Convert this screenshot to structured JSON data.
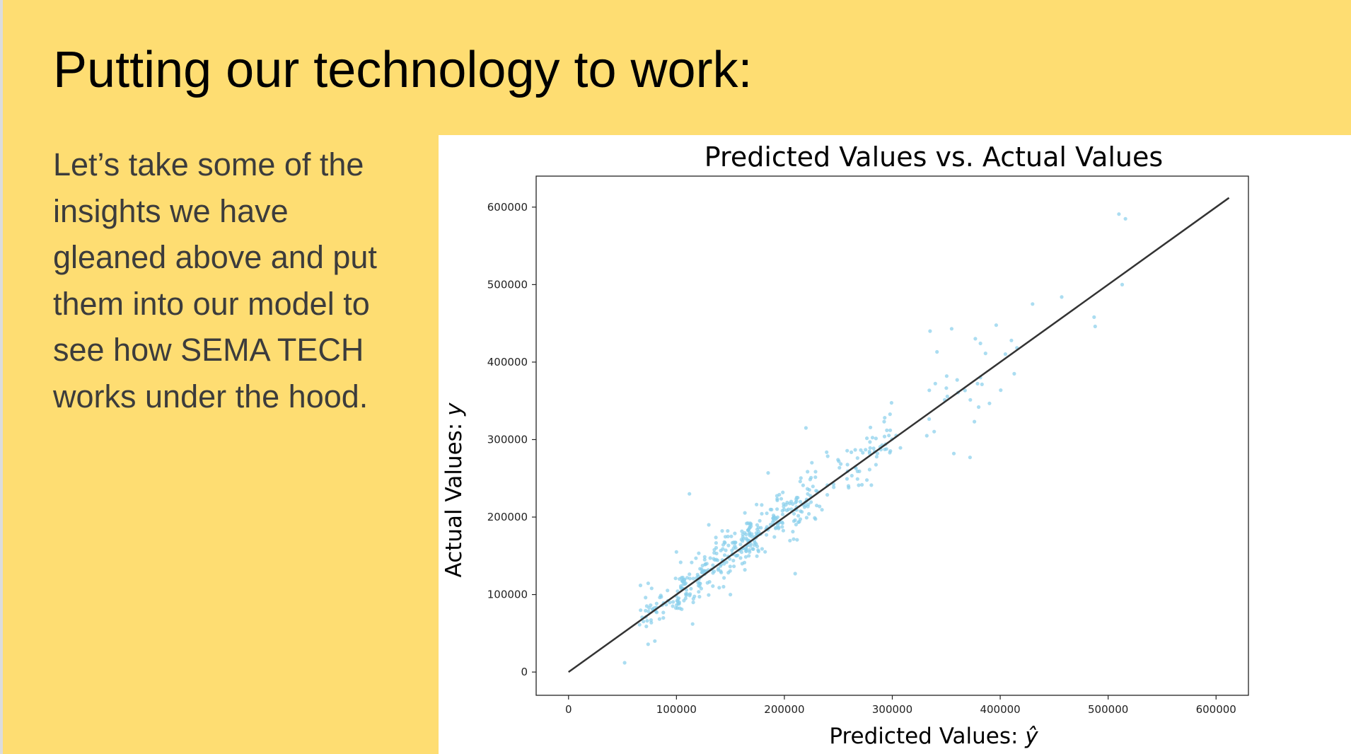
{
  "slide": {
    "title": "Putting our technology to work:",
    "body_lines": [
      "Let’s take some of the",
      "insights we have",
      "gleaned above and put",
      "them into our model to",
      "see how SEMA TECH",
      "works under the hood."
    ],
    "background_color": "#fedd72"
  },
  "chart_data": {
    "type": "scatter",
    "title": "Predicted Values vs. Actual Values",
    "xlabel": "Predicted Values: ",
    "xlabel_symbol": "ŷ",
    "ylabel": "Actual Values: ",
    "ylabel_symbol": "y",
    "xlim": [
      -30000,
      630000
    ],
    "ylim": [
      -30000,
      640000
    ],
    "x_ticks": [
      0,
      100000,
      200000,
      300000,
      400000,
      500000,
      600000
    ],
    "y_ticks": [
      0,
      100000,
      200000,
      300000,
      400000,
      500000,
      600000
    ],
    "x_tick_labels": [
      "0",
      "100000",
      "200000",
      "300000",
      "400000",
      "500000",
      "600000"
    ],
    "y_tick_labels": [
      "0",
      "100000",
      "200000",
      "300000",
      "400000",
      "500000",
      "600000"
    ],
    "grid": false,
    "point_color": "#87ceeb",
    "line_color": "#333333",
    "reference_line": {
      "x": [
        0,
        612000
      ],
      "y": [
        0,
        612000
      ]
    },
    "highlight_points": [
      {
        "x": 52000,
        "y": 12000
      },
      {
        "x": 80000,
        "y": 40000
      },
      {
        "x": 112000,
        "y": 230000
      },
      {
        "x": 115000,
        "y": 62000
      },
      {
        "x": 100000,
        "y": 155000
      },
      {
        "x": 185000,
        "y": 257000
      },
      {
        "x": 210000,
        "y": 127000
      },
      {
        "x": 220000,
        "y": 315000
      },
      {
        "x": 335000,
        "y": 440000
      },
      {
        "x": 355000,
        "y": 443000
      },
      {
        "x": 357000,
        "y": 282000
      },
      {
        "x": 372000,
        "y": 277000
      },
      {
        "x": 457000,
        "y": 484000
      },
      {
        "x": 487000,
        "y": 458000
      },
      {
        "x": 488000,
        "y": 446000
      },
      {
        "x": 513000,
        "y": 500000
      },
      {
        "x": 510000,
        "y": 591000
      },
      {
        "x": 516000,
        "y": 585000
      },
      {
        "x": 430000,
        "y": 475000
      },
      {
        "x": 413000,
        "y": 385000
      },
      {
        "x": 380000,
        "y": 342000
      },
      {
        "x": 332000,
        "y": 305000
      },
      {
        "x": 150000,
        "y": 100000
      },
      {
        "x": 130000,
        "y": 190000
      }
    ],
    "cluster_bands": [
      {
        "x_from": 65000,
        "x_to": 110000,
        "count": 55,
        "spread": 15000
      },
      {
        "x_from": 100000,
        "x_to": 170000,
        "count": 160,
        "spread": 16000
      },
      {
        "x_from": 160000,
        "x_to": 230000,
        "count": 150,
        "spread": 18000
      },
      {
        "x_from": 220000,
        "x_to": 300000,
        "count": 70,
        "spread": 22000
      },
      {
        "x_from": 290000,
        "x_to": 420000,
        "count": 32,
        "spread": 28000
      }
    ]
  }
}
